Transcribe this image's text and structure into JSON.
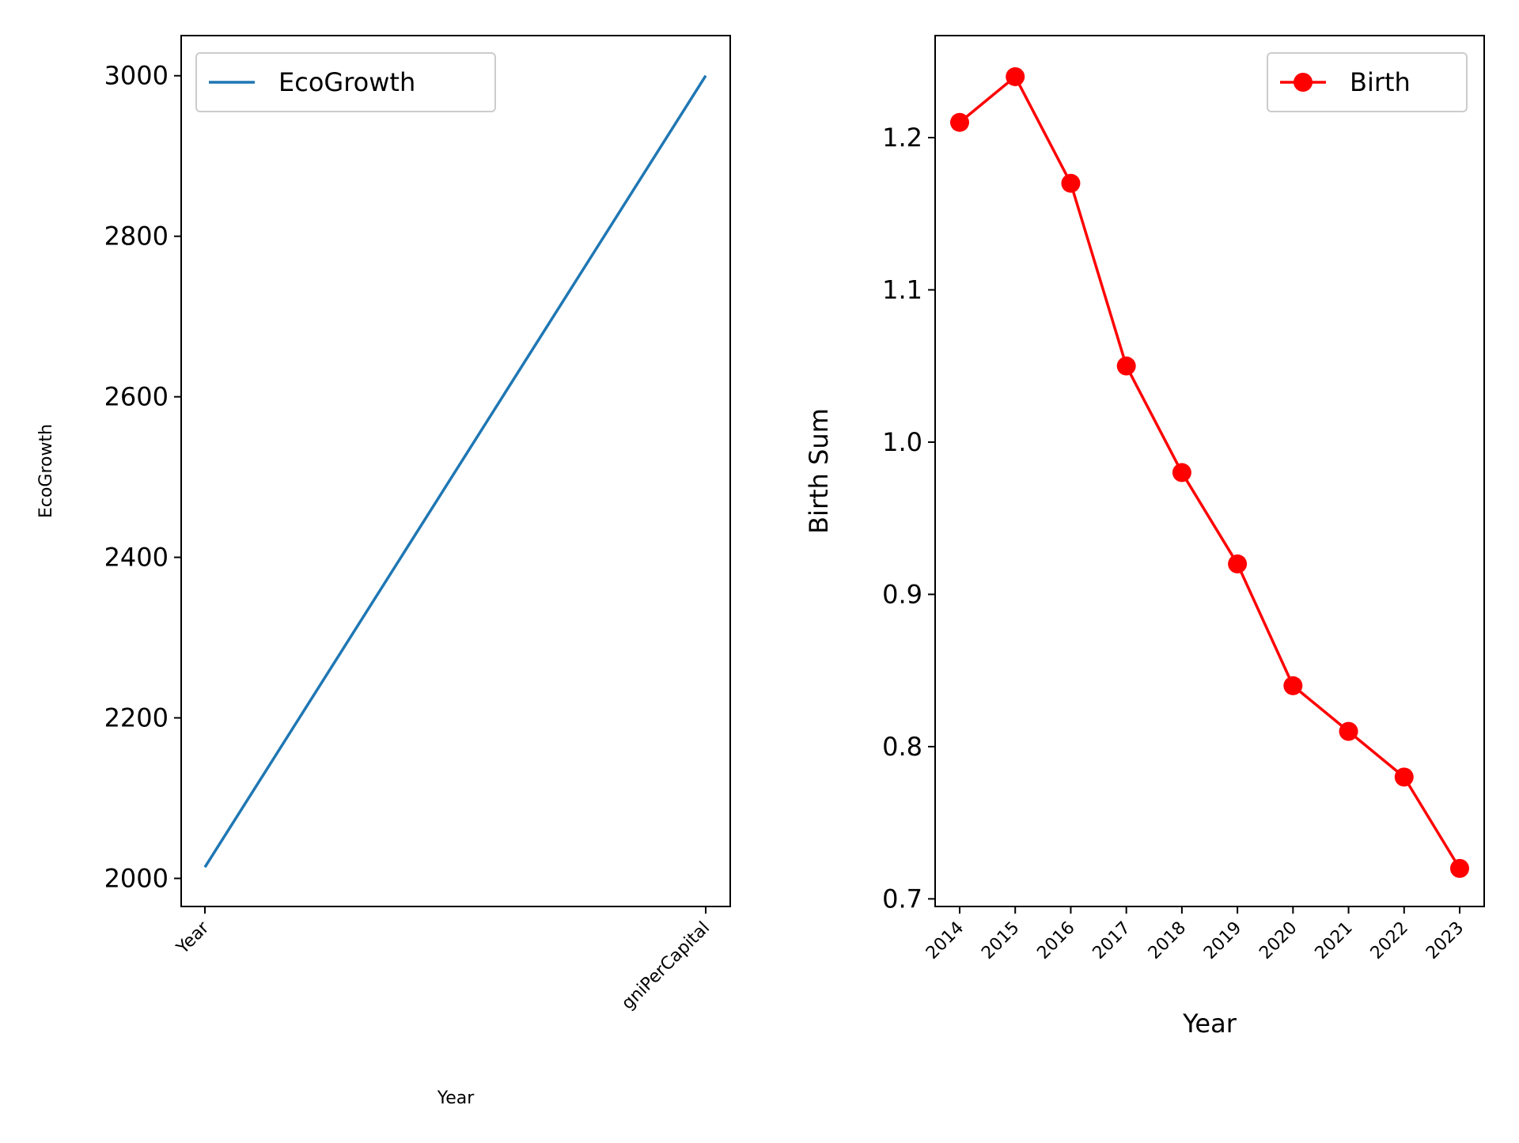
{
  "chart_data": [
    {
      "type": "line",
      "title": "",
      "xlabel": "Year",
      "ylabel": "EcoGrowth",
      "categories": [
        "Year",
        "gniPerCapital"
      ],
      "ylim": [
        1965,
        3050
      ],
      "yticks": [
        2000,
        2200,
        2400,
        2600,
        2800,
        3000
      ],
      "grid": false,
      "legend": "top-left",
      "series": [
        {
          "name": "EcoGrowth",
          "color": "#1f77b4",
          "marker": "none",
          "values": [
            2014,
            3000
          ]
        }
      ]
    },
    {
      "type": "line",
      "title": "",
      "xlabel": "Year",
      "ylabel": "Birth Sum",
      "categories": [
        "2014",
        "2015",
        "2016",
        "2017",
        "2018",
        "2019",
        "2020",
        "2021",
        "2022",
        "2023"
      ],
      "ylim": [
        0.695,
        1.267
      ],
      "yticks": [
        0.7,
        0.8,
        0.9,
        1.0,
        1.1,
        1.2
      ],
      "ytick_labels": [
        "0.7",
        "0.8",
        "0.9",
        "1.0",
        "1.1",
        "1.2"
      ],
      "grid": false,
      "legend": "top-right",
      "series": [
        {
          "name": "Birth",
          "color": "#ff0000",
          "marker": "circle",
          "values": [
            1.21,
            1.24,
            1.17,
            1.05,
            0.98,
            0.92,
            0.84,
            0.81,
            0.78,
            0.72
          ]
        }
      ]
    }
  ]
}
